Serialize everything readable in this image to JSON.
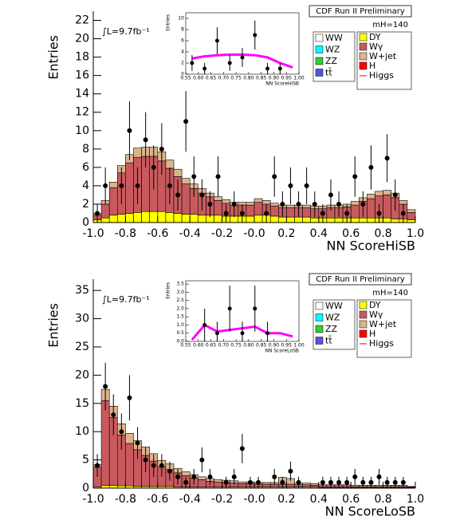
{
  "chart_data": [
    {
      "type": "histogram",
      "title": "CDF Run II Preliminary",
      "lumi": "∫L=9.7fb⁻¹",
      "mass": "mH=140",
      "xlabel": "NN ScoreHiSB",
      "ylabel": "Entries",
      "bins": [
        -1,
        -0.95,
        -0.9,
        -0.85,
        -0.8,
        -0.75,
        -0.7,
        -0.65,
        -0.6,
        -0.55,
        -0.5,
        -0.45,
        -0.4,
        -0.35,
        -0.3,
        -0.25,
        -0.2,
        -0.15,
        -0.1,
        -0.05,
        0,
        0.05,
        0.1,
        0.15,
        0.2,
        0.25,
        0.3,
        0.35,
        0.4,
        0.45,
        0.5,
        0.55,
        0.6,
        0.65,
        0.7,
        0.75,
        0.8,
        0.85,
        0.9,
        0.95,
        1
      ],
      "series": [
        {
          "name": "DY",
          "color": "#ffff00",
          "values": [
            0.3,
            0.5,
            0.8,
            0.9,
            1.0,
            1.1,
            1.2,
            1.2,
            1.2,
            1.1,
            1.0,
            0.9,
            0.9,
            0.8,
            0.8,
            0.8,
            0.7,
            0.7,
            0.7,
            0.7,
            0.8,
            0.8,
            0.7,
            0.6,
            0.6,
            0.6,
            0.6,
            0.5,
            0.5,
            0.5,
            0.5,
            0.5,
            0.5,
            0.5,
            0.5,
            0.5,
            0.5,
            0.4,
            0.4,
            0.3
          ]
        },
        {
          "name": "Wγ",
          "color": "#c85a5f",
          "values": [
            0.5,
            1.5,
            3.0,
            4.5,
            5.5,
            6.0,
            6.0,
            6.0,
            5.5,
            4.8,
            4.0,
            3.3,
            2.8,
            2.4,
            2.0,
            1.6,
            1.4,
            1.2,
            1.2,
            1.2,
            1.4,
            1.2,
            1.1,
            1.0,
            1.0,
            1.0,
            1.0,
            1.0,
            1.0,
            1.1,
            1.1,
            1.2,
            1.4,
            1.8,
            2.1,
            2.4,
            2.5,
            2.3,
            1.6,
            0.8
          ]
        },
        {
          "name": "W+jet",
          "color": "#dcb48c",
          "values": [
            0.2,
            0.4,
            0.6,
            0.8,
            0.9,
            1.0,
            1.0,
            1.0,
            1.0,
            0.9,
            0.8,
            0.6,
            0.5,
            0.5,
            0.4,
            0.4,
            0.4,
            0.3,
            0.3,
            0.3,
            0.4,
            0.4,
            0.3,
            0.3,
            0.3,
            0.3,
            0.3,
            0.3,
            0.3,
            0.3,
            0.3,
            0.3,
            0.4,
            0.4,
            0.5,
            0.5,
            0.5,
            0.5,
            0.4,
            0.3
          ]
        }
      ],
      "data": {
        "values": [
          1,
          4,
          null,
          4,
          10,
          4,
          9,
          6,
          8,
          4,
          3,
          11,
          5,
          3,
          2,
          5,
          1,
          2,
          1,
          null,
          null,
          1,
          5,
          2,
          4,
          2,
          4,
          2,
          1,
          3,
          2,
          1,
          5,
          2,
          6,
          1,
          7,
          3,
          1,
          null
        ],
        "errors": [
          1,
          2,
          null,
          2,
          3.2,
          2,
          3,
          2.4,
          2.8,
          2,
          1.7,
          3.3,
          2.2,
          1.7,
          1.4,
          2.2,
          1,
          1.4,
          1,
          null,
          null,
          1,
          2.2,
          1.4,
          2,
          1.4,
          2,
          1.4,
          1,
          1.7,
          1.4,
          1,
          2.2,
          1.4,
          2.4,
          1,
          2.6,
          1.7,
          1,
          null
        ]
      },
      "legend_other": [
        {
          "name": "WW",
          "color": "#ffffff"
        },
        {
          "name": "WZ",
          "color": "#00ffff"
        },
        {
          "name": "ZZ",
          "color": "#33cc33"
        },
        {
          "name": "tt̄",
          "color": "#5555dd"
        },
        {
          "name": "H",
          "color": "#ff0000"
        },
        {
          "name": "Higgs",
          "color": "#e06060",
          "style": "line"
        }
      ],
      "xlim": [
        -1,
        1
      ],
      "xticks": [
        {
          "value": -1,
          "label": "-1.0"
        },
        -0.8,
        -0.6,
        -0.4,
        -0.2,
        {
          "value": 0,
          "label": "-0.0"
        },
        0.2,
        0.4,
        0.6,
        0.8,
        {
          "value": 1,
          "label": "1.0"
        }
      ],
      "ylim": [
        0,
        23
      ],
      "yticks": [
        0,
        2,
        4,
        6,
        8,
        10,
        12,
        14,
        16,
        18,
        20,
        22
      ],
      "inset": {
        "xlabel": "NN ScoreHiSB",
        "ylabel": "Entries",
        "xlim": [
          0.55,
          1.0
        ],
        "xticks": [
          0.55,
          {
            "value": 0.6,
            "label": "0.60"
          },
          0.65,
          {
            "value": 0.7,
            "label": "0.70"
          },
          0.75,
          {
            "value": 0.8,
            "label": "0.80"
          },
          0.85,
          {
            "value": 0.9,
            "label": "0.90"
          },
          0.95,
          {
            "value": 1.0,
            "label": "1.00"
          }
        ],
        "ylim": [
          0,
          11
        ],
        "yticks": [
          0,
          2,
          4,
          6,
          8,
          10
        ],
        "x": [
          0.575,
          0.625,
          0.675,
          0.725,
          0.775,
          0.825,
          0.875,
          0.925,
          0.975
        ],
        "values": [
          2,
          1,
          6,
          2,
          3,
          7,
          1,
          1,
          null
        ],
        "errors": [
          1.4,
          1,
          2.4,
          1.4,
          1.7,
          2.6,
          1,
          1,
          null
        ],
        "band": {
          "color": "#ff00ff",
          "values": [
            2.8,
            3.2,
            3.4,
            3.5,
            3.5,
            3.4,
            3.0,
            2.0,
            1.2
          ]
        }
      }
    },
    {
      "type": "histogram",
      "title": "CDF Run II Preliminary",
      "lumi": "∫L=9.7fb⁻¹",
      "mass": "mH=140",
      "xlabel": "NN ScoreLoSB",
      "ylabel": "Entries",
      "bins": [
        -1,
        -0.95,
        -0.9,
        -0.85,
        -0.8,
        -0.75,
        -0.7,
        -0.65,
        -0.6,
        -0.55,
        -0.5,
        -0.45,
        -0.4,
        -0.35,
        -0.3,
        -0.25,
        -0.2,
        -0.15,
        -0.1,
        -0.05,
        0,
        0.05,
        0.1,
        0.15,
        0.2,
        0.25,
        0.3,
        0.35,
        0.4,
        0.45,
        0.5,
        0.55,
        0.6,
        0.65,
        0.7,
        0.75,
        0.8,
        0.85,
        0.9,
        0.95,
        1
      ],
      "series": [
        {
          "name": "DY",
          "color": "#ffff00",
          "values": [
            0.2,
            0.5,
            0.5,
            0.4,
            0.4,
            0.3,
            0.3,
            0.3,
            0.3,
            0.3,
            0.2,
            0.2,
            0.2,
            0.2,
            0.2,
            0.2,
            0.2,
            0.2,
            0.2,
            0.2,
            0.2,
            0.2,
            0.2,
            0.2,
            0.2,
            0.2,
            0.2,
            0.2,
            0.1,
            0.1,
            0.1,
            0.1,
            0.1,
            0.1,
            0.1,
            0.1,
            0.1,
            0.1,
            0.1,
            0.1
          ]
        },
        {
          "name": "Wγ",
          "color": "#c85a5f",
          "values": [
            3.5,
            15,
            12,
            9,
            7.5,
            6.5,
            5.5,
            4.5,
            3.5,
            3.0,
            2.5,
            2.0,
            1.6,
            1.3,
            1.0,
            0.9,
            0.8,
            0.7,
            0.6,
            0.6,
            0.5,
            0.5,
            0.5,
            0.5,
            0.5,
            0.4,
            0.4,
            0.3,
            0.3,
            0.3,
            0.3,
            0.3,
            0.2,
            0.2,
            0.2,
            0.2,
            0.2,
            0.2,
            0.2,
            0.1
          ]
        },
        {
          "name": "W+jet",
          "color": "#dcb48c",
          "values": [
            0.5,
            2,
            2,
            2,
            1.8,
            1.6,
            1.5,
            1.3,
            1.1,
            1.0,
            0.8,
            0.7,
            0.6,
            0.5,
            0.5,
            0.4,
            0.4,
            0.4,
            0.3,
            0.3,
            0.3,
            0.3,
            0.3,
            1.2,
            1.0,
            0.3,
            0.3,
            0.3,
            0.2,
            0.2,
            0.2,
            0.2,
            0.2,
            0.2,
            0.2,
            0.2,
            0.2,
            0.2,
            0.2,
            0.1
          ]
        }
      ],
      "data": {
        "values": [
          4,
          18,
          13,
          10,
          16,
          8,
          5,
          4,
          4,
          3,
          2,
          1,
          2,
          5,
          2,
          null,
          1,
          2,
          7,
          1,
          1,
          null,
          2,
          1,
          3,
          1,
          null,
          null,
          1,
          1,
          1,
          1,
          2,
          1,
          1,
          2,
          1,
          1,
          1,
          null
        ],
        "errors": [
          2,
          4.2,
          3.6,
          3.2,
          4,
          2.8,
          2.2,
          2,
          2,
          1.7,
          1.4,
          1,
          1.4,
          2.2,
          1.4,
          null,
          1,
          1.4,
          2.6,
          1,
          1,
          null,
          1.4,
          1,
          1.7,
          1,
          null,
          null,
          1,
          1,
          1,
          1,
          1.4,
          1,
          1,
          1.4,
          1,
          1,
          1,
          null
        ]
      },
      "legend_other": [
        {
          "name": "WW",
          "color": "#ffffff"
        },
        {
          "name": "WZ",
          "color": "#00ffff"
        },
        {
          "name": "ZZ",
          "color": "#33cc33"
        },
        {
          "name": "tt̄",
          "color": "#5555dd"
        },
        {
          "name": "H",
          "color": "#ff0000"
        },
        {
          "name": "Higgs",
          "color": "#e06060",
          "style": "line"
        }
      ],
      "xlim": [
        -1,
        1
      ],
      "xticks": [
        {
          "value": -1,
          "label": "-1.0"
        },
        -0.8,
        -0.6,
        -0.4,
        -0.2,
        {
          "value": 0,
          "label": "-0.0"
        },
        0.2,
        0.4,
        0.6,
        0.8,
        {
          "value": 1,
          "label": "1.0"
        }
      ],
      "ylim": [
        0,
        37
      ],
      "yticks": [
        0,
        5,
        10,
        15,
        20,
        25,
        30,
        35
      ],
      "inset": {
        "xlabel": "NN ScoreLoSB",
        "ylabel": "Entries",
        "xlim": [
          0.55,
          1.0
        ],
        "xticks": [
          0.55,
          {
            "value": 0.6,
            "label": "0.60"
          },
          0.65,
          {
            "value": 0.7,
            "label": "0.70"
          },
          0.75,
          {
            "value": 0.8,
            "label": "0.80"
          },
          0.85,
          {
            "value": 0.9,
            "label": "0.90"
          },
          0.95,
          {
            "value": 1.0,
            "label": "1.00"
          }
        ],
        "ylim": [
          0,
          3.7
        ],
        "yticks": [
          {
            "value": 0,
            "label": "0.0"
          },
          0.5,
          {
            "value": 1,
            "label": "1.0"
          },
          1.5,
          {
            "value": 2,
            "label": "2.0"
          },
          2.5,
          {
            "value": 3,
            "label": "3.0"
          },
          3.5
        ],
        "x": [
          0.575,
          0.625,
          0.675,
          0.725,
          0.775,
          0.825,
          0.875,
          0.925,
          0.975
        ],
        "values": [
          null,
          1,
          0.5,
          2,
          0.5,
          2,
          0.5,
          null,
          null
        ],
        "errors": [
          null,
          1,
          0.7,
          1.4,
          0.7,
          1.4,
          0.7,
          null,
          null
        ],
        "band": {
          "color": "#ff00ff",
          "values": [
            0.1,
            1.0,
            0.6,
            0.7,
            0.8,
            0.9,
            0.5,
            0.5,
            0.3
          ]
        }
      }
    }
  ]
}
